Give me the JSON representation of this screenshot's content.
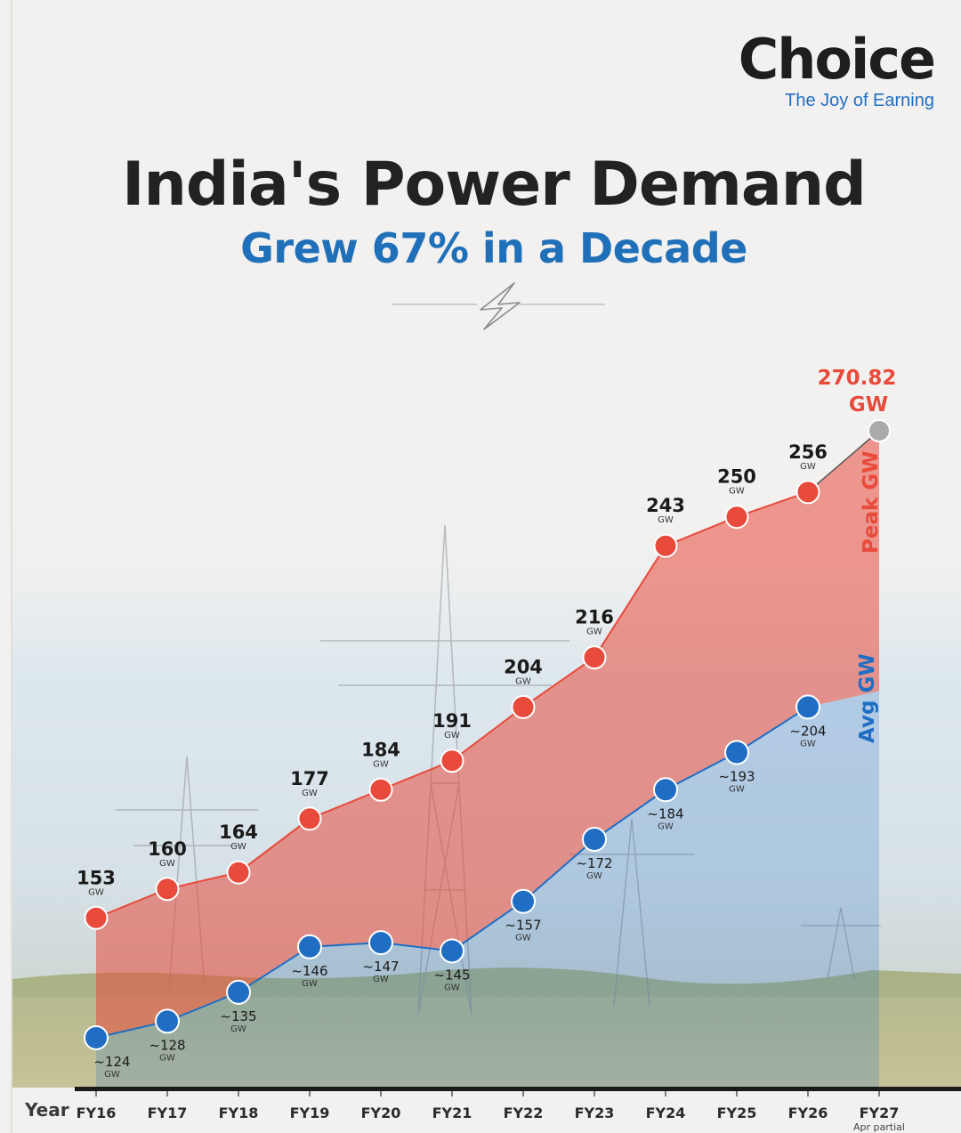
{
  "brand": {
    "name": "Choice",
    "tagline": "The Joy of Earning"
  },
  "title": "India's Power Demand",
  "subtitle": "Grew 67% in a Decade",
  "colors": {
    "peak": "#e84a3c",
    "avg": "#1f6ec4",
    "title": "#222222",
    "forecast": "#aaaaaa"
  },
  "chart_data": {
    "type": "line",
    "x_axis_title": "Year",
    "categories": [
      "FY16",
      "FY17",
      "FY18",
      "FY19",
      "FY20",
      "FY21",
      "FY22",
      "FY23",
      "FY24",
      "FY25",
      "FY26",
      "FY27"
    ],
    "x_note": "Apr partial",
    "series": [
      {
        "name": "Peak GW",
        "values": [
          153,
          160,
          164,
          177,
          184,
          191,
          204,
          216,
          243,
          250,
          256,
          270.82
        ],
        "labels": [
          "153",
          "160",
          "164",
          "177",
          "184",
          "191",
          "204",
          "216",
          "243",
          "250",
          "256",
          "270.82"
        ],
        "unit": "GW"
      },
      {
        "name": "Avg GW",
        "values": [
          124,
          128,
          135,
          146,
          147,
          145,
          157,
          172,
          184,
          193,
          204,
          null
        ],
        "labels": [
          "~124",
          "~128",
          "~135",
          "~146",
          "~147",
          "~145",
          "~157",
          "~172",
          "~184",
          "~193",
          "~204",
          null
        ],
        "unit": "GW"
      }
    ]
  }
}
